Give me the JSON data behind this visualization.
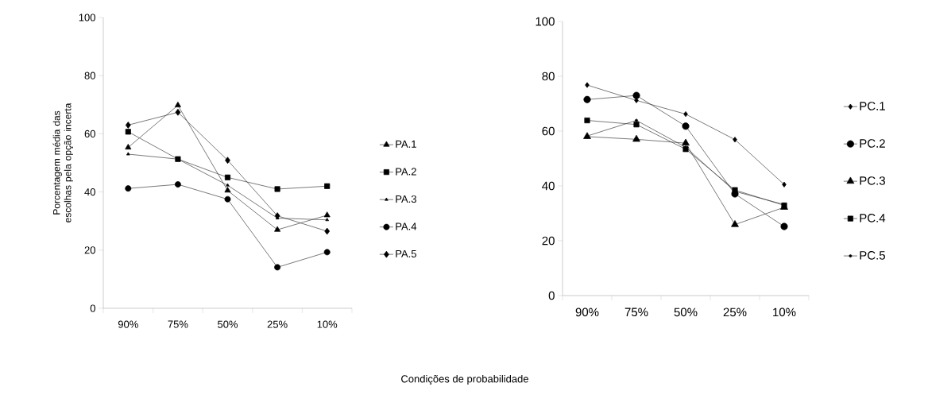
{
  "chart_data": [
    {
      "type": "line",
      "ylabel": "Porcentagem média das escolhas pela opção incerta",
      "xlabel": "Condições de probabilidade",
      "categories": [
        "90%",
        "75%",
        "50%",
        "25%",
        "10%"
      ],
      "ylim": [
        0,
        100
      ],
      "yticks": [
        0,
        20,
        40,
        60,
        80,
        100
      ],
      "grid": false,
      "legend": "right",
      "line_style": "solid",
      "series": [
        {
          "name": "PA.1",
          "color": "#000000",
          "marker": "triangle",
          "values": [
            55.3,
            69.8,
            40.5,
            27,
            32
          ]
        },
        {
          "name": "PA.2",
          "color": "#000000",
          "marker": "square",
          "values": [
            60.7,
            51.3,
            45,
            41,
            42
          ]
        },
        {
          "name": "PA.3",
          "color": "#000000",
          "marker": "triangle",
          "values": [
            53,
            51.3,
            42.3,
            31,
            30.4
          ]
        },
        {
          "name": "PA.4",
          "color": "#000000",
          "marker": "circle",
          "values": [
            41.2,
            42.6,
            37.5,
            14.1,
            19.3
          ]
        },
        {
          "name": "PA.5",
          "color": "#000000",
          "marker": "diamond",
          "values": [
            63,
            67.4,
            50.9,
            31.8,
            26.5
          ]
        }
      ]
    },
    {
      "type": "line",
      "categories": [
        "90%",
        "75%",
        "50%",
        "25%",
        "10%"
      ],
      "ylim": [
        0,
        100
      ],
      "yticks": [
        0,
        20,
        40,
        60,
        80,
        100
      ],
      "grid": false,
      "legend": "right",
      "line_style": "solid",
      "series": [
        {
          "name": "PC.1",
          "color": "#000000",
          "marker": "diamond",
          "values": [
            76.8,
            71.2,
            66.2,
            56.9,
            40.5
          ]
        },
        {
          "name": "PC.2",
          "color": "#000000",
          "marker": "circle",
          "values": [
            71.5,
            73,
            61.8,
            37.1,
            25.2
          ]
        },
        {
          "name": "PC.3",
          "color": "#000000",
          "marker": "triangle",
          "values": [
            58,
            57,
            55.6,
            25.9,
            32.2
          ]
        },
        {
          "name": "PC.4",
          "color": "#000000",
          "marker": "square",
          "values": [
            63.9,
            62.4,
            53.4,
            38.5,
            32.9
          ]
        },
        {
          "name": "PC.5",
          "color": "#000000",
          "marker": "circle",
          "values": [
            58.2,
            63.9,
            54.1,
            38,
            33.2
          ]
        }
      ]
    }
  ]
}
